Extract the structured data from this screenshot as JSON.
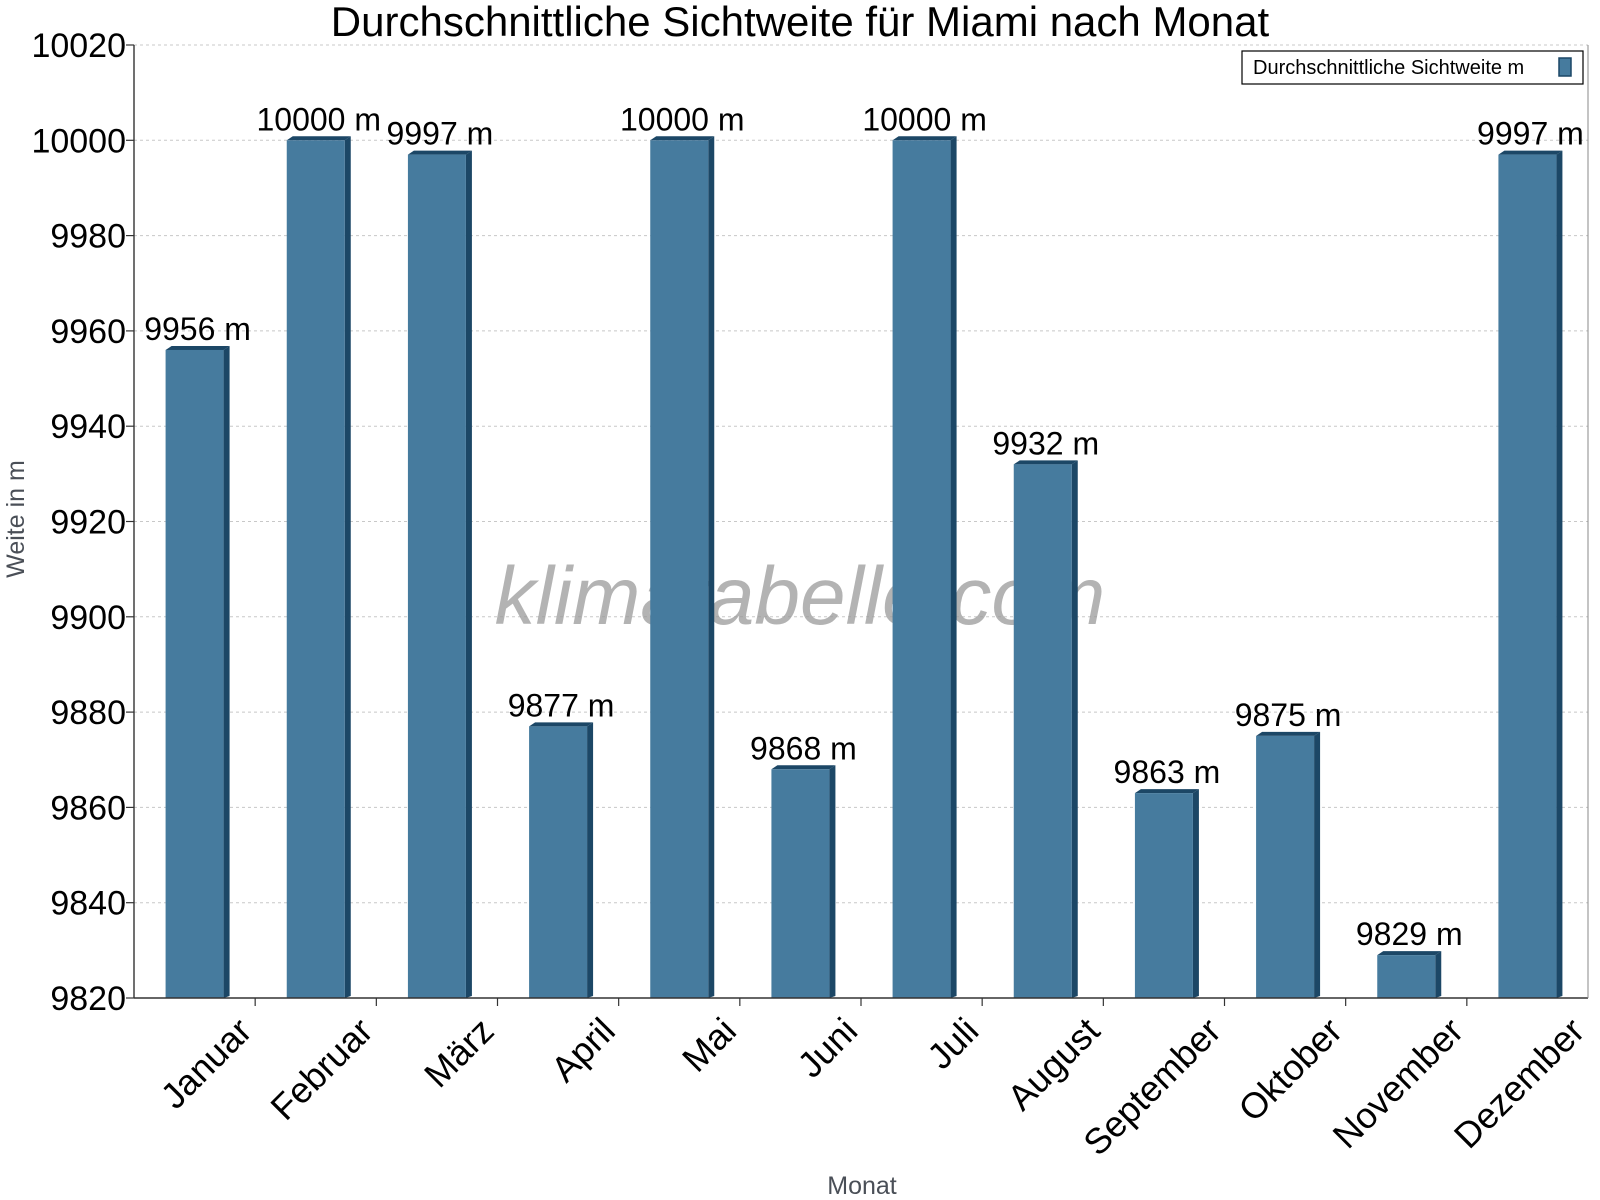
{
  "chart_data": {
    "type": "bar",
    "title": "Durchschnittliche Sichtweite für Miami nach Monat",
    "xlabel": "Monat",
    "ylabel": "Weite in m",
    "categories": [
      "Januar",
      "Februar",
      "März",
      "April",
      "Mai",
      "Juni",
      "Juli",
      "August",
      "September",
      "Oktober",
      "November",
      "Dezember"
    ],
    "series": [
      {
        "name": "Durchschnittliche Sichtweite m",
        "values": [
          9956,
          10000,
          9997,
          9877,
          10000,
          9868,
          10000,
          9932,
          9863,
          9875,
          9829,
          9997
        ],
        "labels": [
          "9956 m",
          "10000 m",
          "9997 m",
          "9877 m",
          "10000 m",
          "9868 m",
          "10000 m",
          "9932 m",
          "9863 m",
          "9875 m",
          "9829 m",
          "9997 m"
        ]
      }
    ],
    "ylim": [
      9820,
      10020
    ],
    "yticks": [
      9820,
      9840,
      9860,
      9880,
      9900,
      9920,
      9940,
      9960,
      9980,
      10000,
      10020
    ],
    "grid": true,
    "legend": "top-right",
    "colors": {
      "bar": "#467b9e",
      "bar_side": "#1c4766",
      "grid": "#c8c8c8",
      "axis": "#333333"
    },
    "watermark": "klimatabelle.com"
  }
}
